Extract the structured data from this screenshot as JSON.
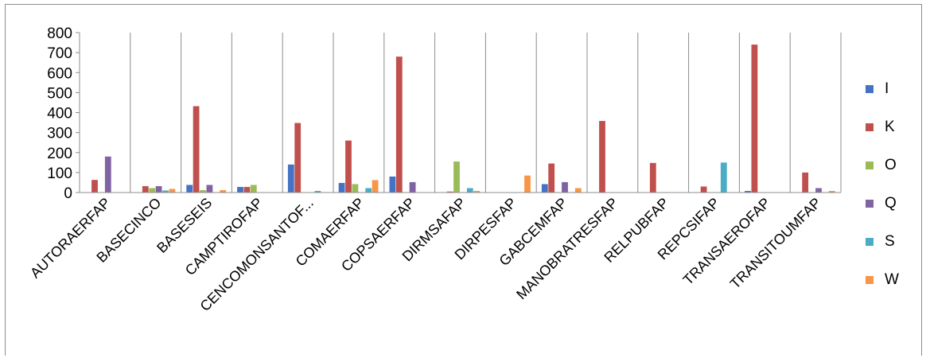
{
  "chart_data": {
    "type": "bar",
    "title": "",
    "xlabel": "",
    "ylabel": "",
    "ylim": [
      0,
      800
    ],
    "yticks": [
      "0",
      "100",
      "200",
      "300",
      "400",
      "500",
      "600",
      "700",
      "800"
    ],
    "grid": "vertical",
    "legend_position": "right",
    "categories": [
      "AUTORAERFAP",
      "BASECINCO",
      "BASESEIS",
      "CAMPTIROFAP",
      "CENCOMONSANTOF...",
      "COMAERFAP",
      "COPSAERFAP",
      "DIRMSAFAP",
      "DIRPESFAP",
      "GABCEMFAP",
      "MANOBRATRESFAP",
      "RELPUBFAP",
      "REPCSIFAP",
      "TRANSAEROFAP",
      "TRANSITOUMFAP"
    ],
    "series": [
      {
        "name": "I",
        "color": "#4472C4",
        "values": [
          0,
          0,
          38,
          28,
          140,
          48,
          80,
          0,
          0,
          42,
          0,
          0,
          0,
          8,
          0
        ]
      },
      {
        "name": "K",
        "color": "#C0504D",
        "values": [
          63,
          32,
          432,
          28,
          348,
          260,
          680,
          5,
          0,
          145,
          358,
          148,
          30,
          740,
          100
        ]
      },
      {
        "name": "O",
        "color": "#9BBB59",
        "values": [
          0,
          22,
          12,
          38,
          0,
          42,
          0,
          155,
          0,
          0,
          0,
          0,
          0,
          0,
          0
        ]
      },
      {
        "name": "Q",
        "color": "#8064A2",
        "values": [
          180,
          32,
          38,
          0,
          0,
          0,
          52,
          0,
          0,
          52,
          0,
          0,
          0,
          0,
          22
        ]
      },
      {
        "name": "S",
        "color": "#4BACC6",
        "values": [
          0,
          10,
          0,
          0,
          8,
          22,
          0,
          22,
          0,
          0,
          0,
          0,
          150,
          0,
          0
        ]
      },
      {
        "name": "W",
        "color": "#F79646",
        "values": [
          0,
          18,
          12,
          0,
          0,
          62,
          0,
          8,
          85,
          22,
          0,
          0,
          0,
          0,
          8
        ]
      }
    ]
  }
}
